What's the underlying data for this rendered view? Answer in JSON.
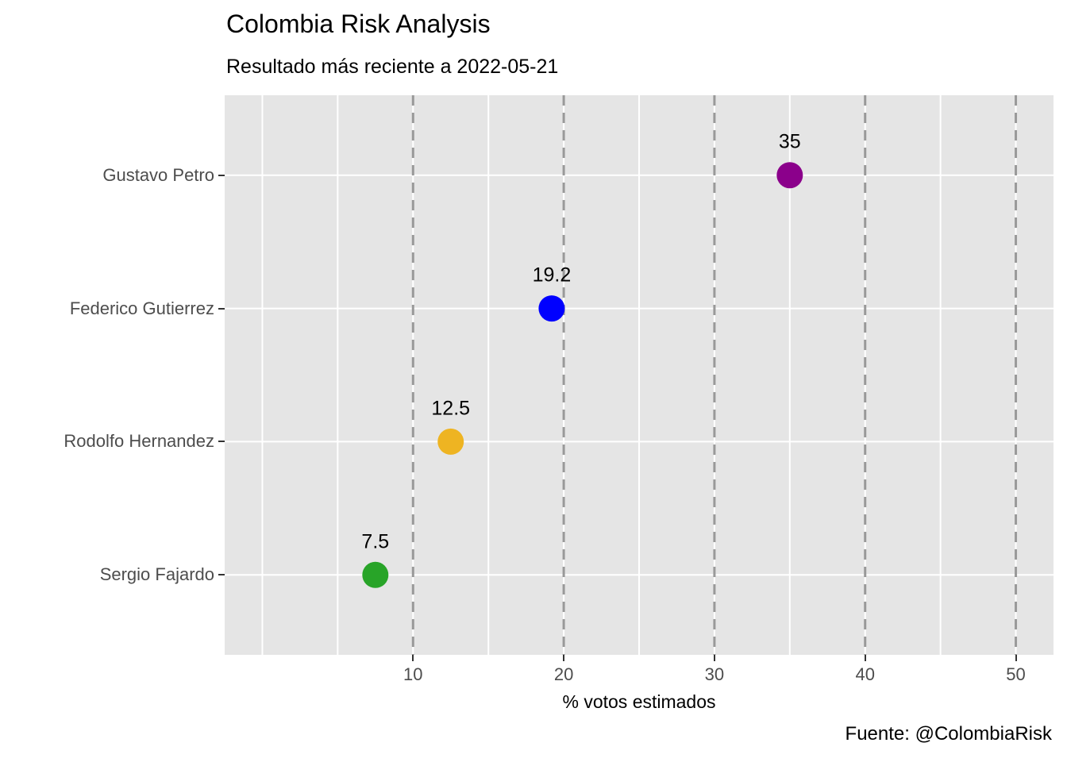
{
  "header": {
    "title": "Colombia Risk Analysis",
    "subtitle": "Resultado más reciente a 2022-05-21"
  },
  "footer": {
    "caption": "Fuente: @ColombiaRisk"
  },
  "chart_data": {
    "type": "scatter",
    "subtype": "horizontal-dot-plot",
    "title": "Colombia Risk Analysis",
    "subtitle": "Resultado más reciente a 2022-05-21",
    "caption": "Fuente: @ColombiaRisk",
    "categories": [
      "Gustavo Petro",
      "Federico Gutierrez",
      "Rodolfo Hernandez",
      "Sergio Fajardo"
    ],
    "values": [
      35,
      19.2,
      12.5,
      7.5
    ],
    "value_labels": [
      "35",
      "19.2",
      "12.5",
      "7.5"
    ],
    "point_colors": [
      "#8B008B",
      "#0000FF",
      "#EEB422",
      "#28A428"
    ],
    "xlabel": "% votos estimados",
    "ylabel": "",
    "xlim": [
      -2.5,
      52.5
    ],
    "x_ticks": [
      10,
      20,
      30,
      40,
      50
    ],
    "x_gridlines": [
      0,
      5,
      10,
      15,
      20,
      25,
      30,
      35,
      40,
      45,
      50
    ],
    "dashed_vlines": [
      10,
      20,
      30,
      40,
      50
    ],
    "grid": "on",
    "legend": "none",
    "colors": {
      "panel_bg": "#E5E5E5",
      "gridline": "#FFFFFF",
      "dashed_line": "#999999",
      "tick": "#333333",
      "axis_text": "#4D4D4D",
      "text": "#000000",
      "background": "#FFFFFF"
    }
  }
}
